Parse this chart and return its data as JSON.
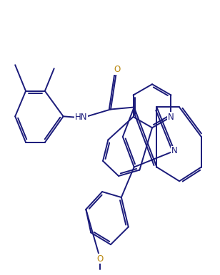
{
  "background_color": "#ffffff",
  "line_color": "#1a1a7a",
  "label_color_N": "#1a1a7a",
  "label_color_O": "#b8860b",
  "line_width": 1.4,
  "figsize": [
    3.08,
    3.86
  ],
  "dpi": 100,
  "xlim": [
    0,
    10
  ],
  "ylim": [
    0,
    12.5
  ]
}
